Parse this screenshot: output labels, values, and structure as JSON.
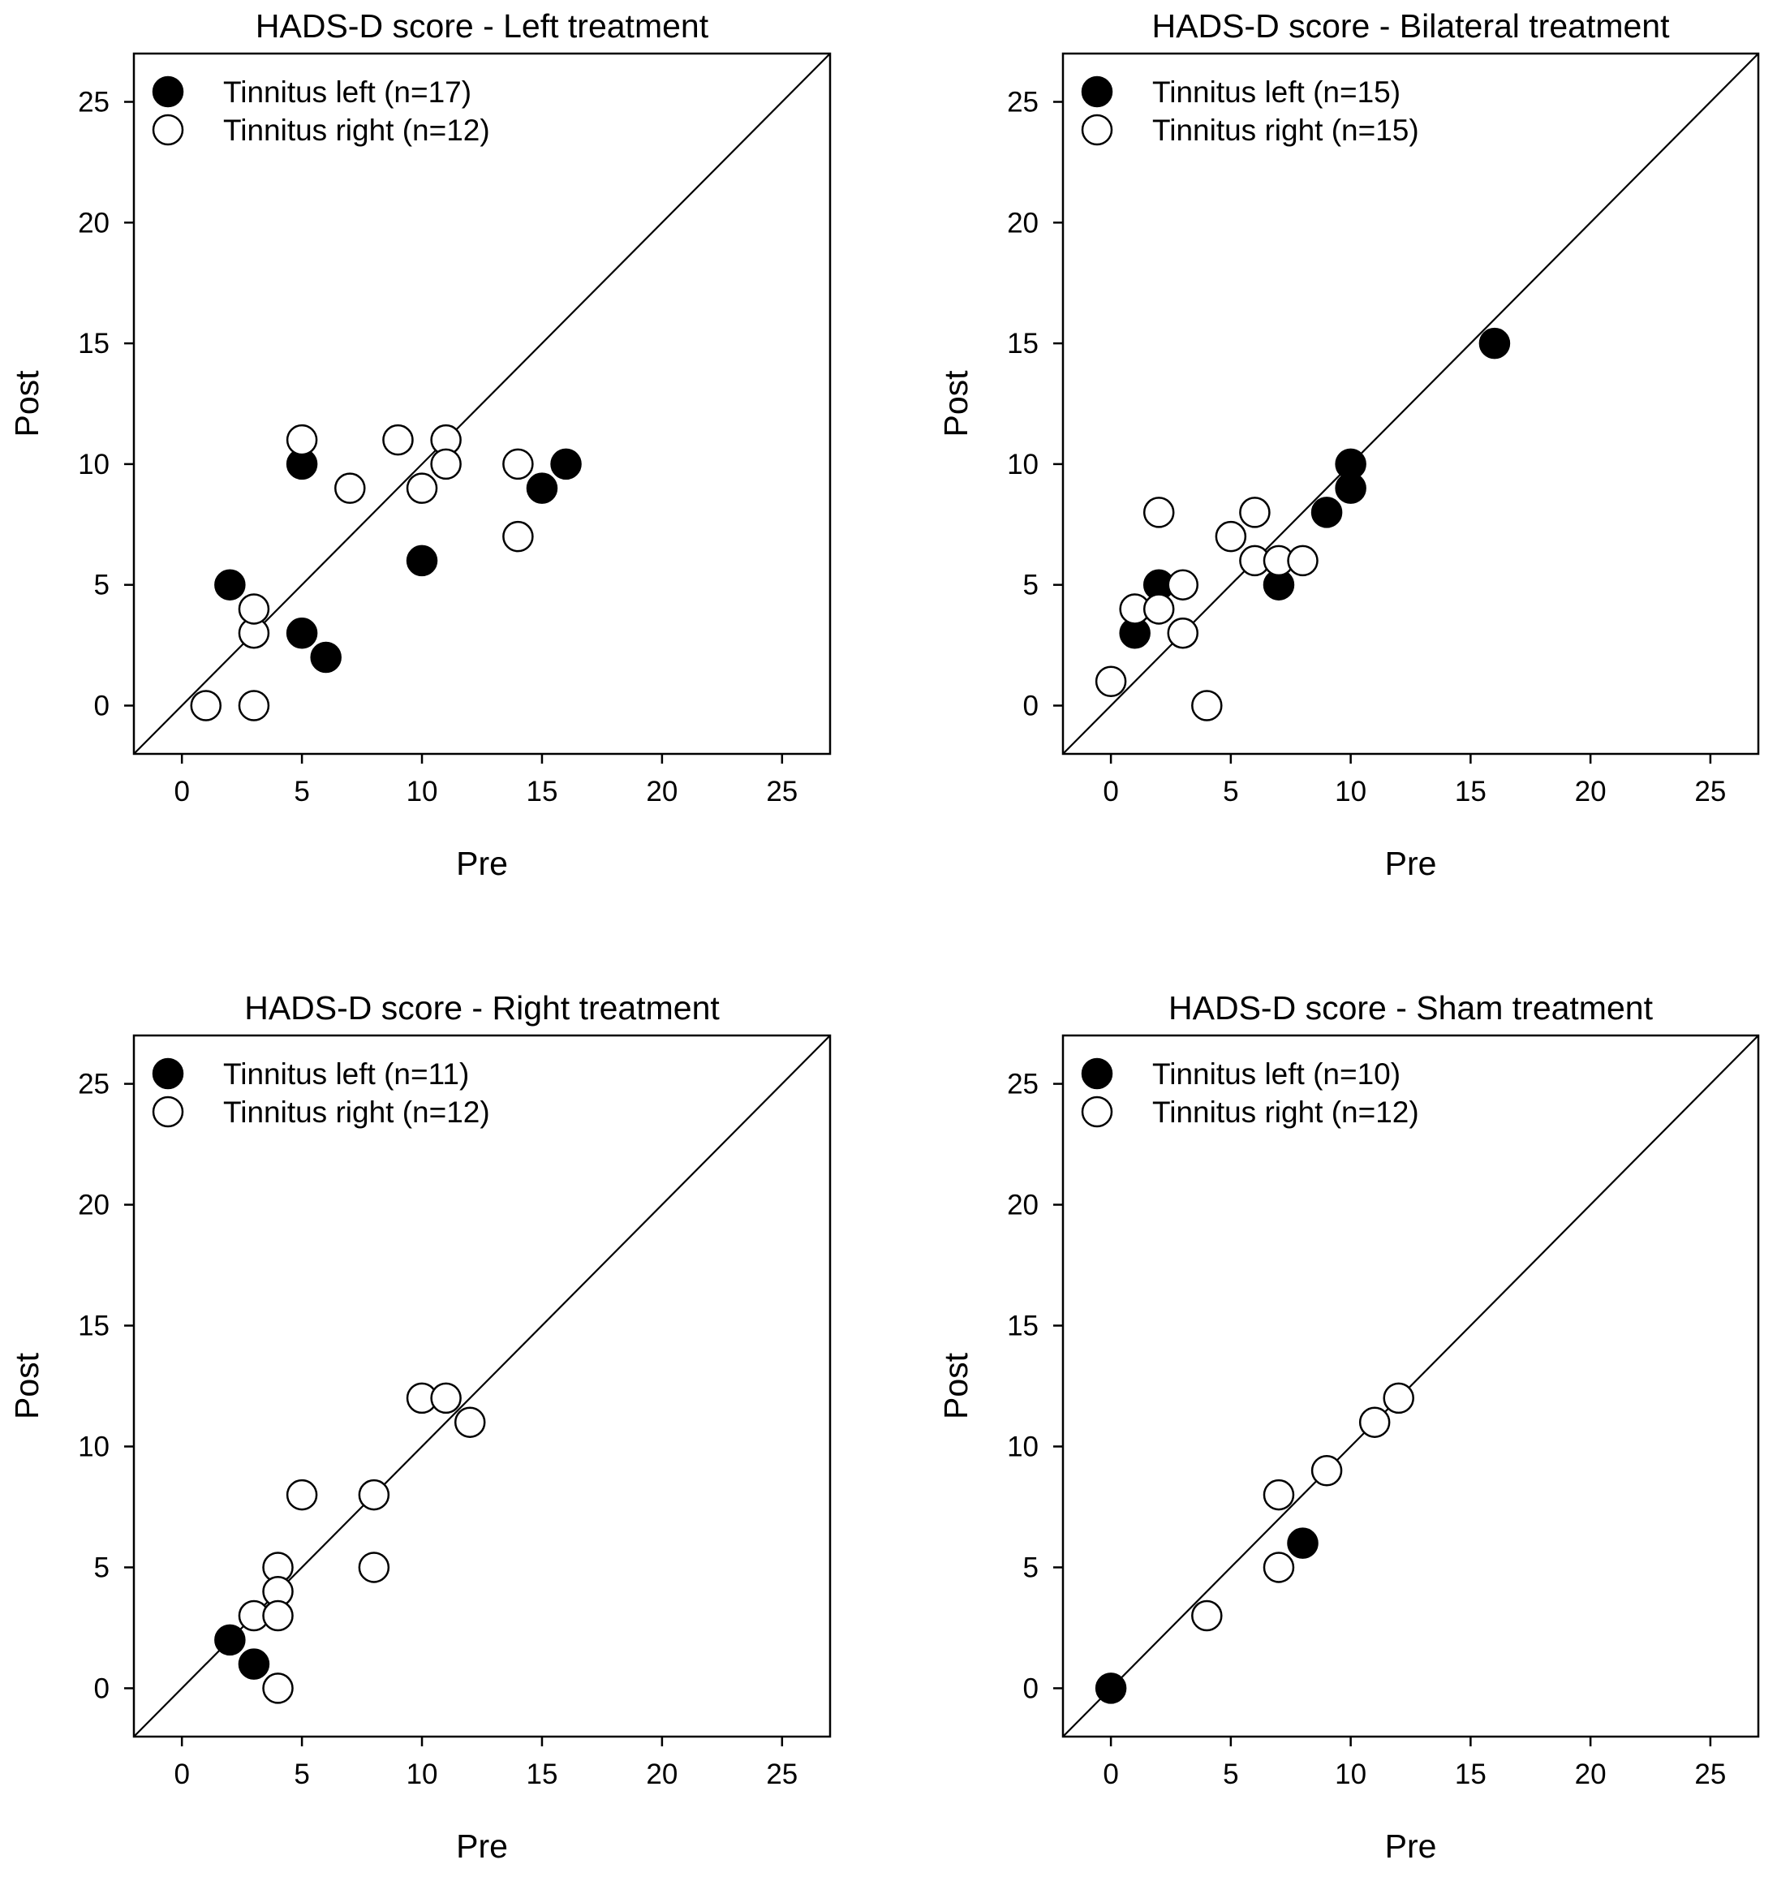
{
  "chart_data": [
    {
      "type": "scatter",
      "title": "HADS-D score - Left treatment",
      "xlabel": "Pre",
      "ylabel": "Post",
      "xlim": [
        -2,
        27
      ],
      "ylim": [
        -2,
        27
      ],
      "xticks": [
        0,
        5,
        10,
        15,
        20,
        25
      ],
      "yticks": [
        0,
        5,
        10,
        15,
        20,
        25
      ],
      "identity_line": true,
      "legend_position": "top-left",
      "series": [
        {
          "name": "Tinnitus left (n=17)",
          "marker": "filled-circle",
          "points": [
            [
              2,
              5
            ],
            [
              5,
              10
            ],
            [
              5,
              3
            ],
            [
              6,
              2
            ],
            [
              10,
              6
            ],
            [
              15,
              9
            ],
            [
              16,
              10
            ]
          ]
        },
        {
          "name": "Tinnitus right (n=12)",
          "marker": "open-circle",
          "points": [
            [
              1,
              0
            ],
            [
              3,
              0
            ],
            [
              3,
              3
            ],
            [
              3,
              4
            ],
            [
              5,
              11
            ],
            [
              7,
              9
            ],
            [
              9,
              11
            ],
            [
              10,
              9
            ],
            [
              11,
              11
            ],
            [
              11,
              10
            ],
            [
              14,
              10
            ],
            [
              14,
              7
            ]
          ]
        }
      ]
    },
    {
      "type": "scatter",
      "title": "HADS-D score  - Bilateral treatment",
      "xlabel": "Pre",
      "ylabel": "Post",
      "xlim": [
        -2,
        27
      ],
      "ylim": [
        -2,
        27
      ],
      "xticks": [
        0,
        5,
        10,
        15,
        20,
        25
      ],
      "yticks": [
        0,
        5,
        10,
        15,
        20,
        25
      ],
      "identity_line": true,
      "legend_position": "top-left",
      "series": [
        {
          "name": "Tinnitus left (n=15)",
          "marker": "filled-circle",
          "points": [
            [
              1,
              3
            ],
            [
              2,
              5
            ],
            [
              7,
              5
            ],
            [
              9,
              8
            ],
            [
              10,
              10
            ],
            [
              10,
              9
            ],
            [
              16,
              15
            ]
          ]
        },
        {
          "name": "Tinnitus right (n=15)",
          "marker": "open-circle",
          "points": [
            [
              0,
              1
            ],
            [
              1,
              4
            ],
            [
              2,
              4
            ],
            [
              2,
              8
            ],
            [
              3,
              5
            ],
            [
              3,
              3
            ],
            [
              4,
              0
            ],
            [
              5,
              7
            ],
            [
              6,
              8
            ],
            [
              6,
              6
            ],
            [
              7,
              6
            ],
            [
              8,
              6
            ]
          ]
        }
      ]
    },
    {
      "type": "scatter",
      "title": "HADS-D score  - Right treatment",
      "xlabel": "Pre",
      "ylabel": "Post",
      "xlim": [
        -2,
        27
      ],
      "ylim": [
        -2,
        27
      ],
      "xticks": [
        0,
        5,
        10,
        15,
        20,
        25
      ],
      "yticks": [
        0,
        5,
        10,
        15,
        20,
        25
      ],
      "identity_line": true,
      "legend_position": "top-left",
      "series": [
        {
          "name": "Tinnitus left (n=11)",
          "marker": "filled-circle",
          "points": [
            [
              2,
              2
            ],
            [
              3,
              1
            ]
          ]
        },
        {
          "name": "Tinnitus right (n=12)",
          "marker": "open-circle",
          "points": [
            [
              3,
              3
            ],
            [
              4,
              5
            ],
            [
              4,
              4
            ],
            [
              4,
              3
            ],
            [
              4,
              0
            ],
            [
              5,
              8
            ],
            [
              8,
              8
            ],
            [
              8,
              5
            ],
            [
              10,
              12
            ],
            [
              11,
              12
            ],
            [
              12,
              11
            ]
          ]
        }
      ]
    },
    {
      "type": "scatter",
      "title": "HADS-D score  - Sham treatment",
      "xlabel": "Pre",
      "ylabel": "Post",
      "xlim": [
        -2,
        27
      ],
      "ylim": [
        -2,
        27
      ],
      "xticks": [
        0,
        5,
        10,
        15,
        20,
        25
      ],
      "yticks": [
        0,
        5,
        10,
        15,
        20,
        25
      ],
      "identity_line": true,
      "legend_position": "top-left",
      "series": [
        {
          "name": "Tinnitus left (n=10)",
          "marker": "filled-circle",
          "points": [
            [
              0,
              0
            ],
            [
              8,
              6
            ]
          ]
        },
        {
          "name": "Tinnitus right (n=12)",
          "marker": "open-circle",
          "points": [
            [
              4,
              3
            ],
            [
              7,
              8
            ],
            [
              7,
              5
            ],
            [
              9,
              9
            ],
            [
              11,
              11
            ],
            [
              12,
              12
            ]
          ]
        }
      ]
    }
  ]
}
